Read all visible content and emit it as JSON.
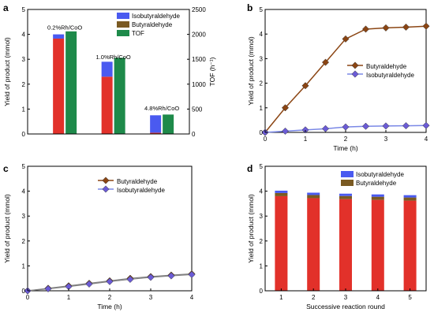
{
  "colors": {
    "isobutyraldehyde": "#4a5af0",
    "butyraldehyde": "#7a5a22",
    "tof": "#1e8a4a",
    "bar_red": "#e2312a",
    "line_butyraldehyde": "#8b4513",
    "marker_isobutyraldehyde": "#6b5bd6",
    "line_isobutyraldehyde": "#7a88e6"
  },
  "chart_data": [
    {
      "panel": "a",
      "type": "bar",
      "categories": [
        "0.2%Rh/CoO",
        "1.0%Rh/CoO",
        "4.8%Rh/CoO"
      ],
      "series": [
        {
          "name": "Isobutyraldehyde",
          "values": [
            0.17,
            0.6,
            0.7
          ],
          "axis": "left",
          "stack": "yield"
        },
        {
          "name": "Butyraldehyde",
          "values": [
            3.83,
            2.3,
            0.05
          ],
          "axis": "left",
          "stack": "yield"
        },
        {
          "name": "TOF",
          "values": [
            2060,
            1530,
            390
          ],
          "axis": "right"
        }
      ],
      "ylabel": "Yield of product (mmol)",
      "ylabel_right": "TOF (h⁻¹)",
      "ylim": [
        0,
        5
      ],
      "ylim_right": [
        0,
        2500
      ],
      "yticks": [
        "0",
        "1",
        "2",
        "3",
        "4",
        "5"
      ],
      "yticks_right": [
        "0",
        "500",
        "1000",
        "1500",
        "2000",
        "2500"
      ],
      "annotations": [
        "0.2%Rh/CoO",
        "1.0%Rh/CoO",
        "4.8%Rh/CoO"
      ],
      "legend": [
        "Isobutyraldehyde",
        "Butyraldehyde",
        "TOF"
      ],
      "legend_position": "top-right"
    },
    {
      "panel": "b",
      "type": "line",
      "x": [
        0,
        0.5,
        1,
        1.5,
        2,
        2.5,
        3,
        3.5,
        4
      ],
      "series": [
        {
          "name": "Butyraldehyde",
          "values": [
            0,
            1.0,
            1.9,
            2.85,
            3.8,
            4.2,
            4.25,
            4.28,
            4.32
          ]
        },
        {
          "name": "Isobutyraldehyde",
          "values": [
            0,
            0.05,
            0.1,
            0.15,
            0.22,
            0.25,
            0.26,
            0.27,
            0.28
          ]
        }
      ],
      "xlabel": "Time (h)",
      "ylabel": "Yield of product (mmol)",
      "xlim": [
        0,
        4
      ],
      "ylim": [
        0,
        5
      ],
      "xticks": [
        "0",
        "1",
        "2",
        "3",
        "4"
      ],
      "yticks": [
        "0",
        "1",
        "2",
        "3",
        "4",
        "5"
      ],
      "legend": [
        "Butyraldehyde",
        "Isobutyraldehyde"
      ],
      "legend_position": "center-right"
    },
    {
      "panel": "c",
      "type": "line",
      "x": [
        0,
        0.5,
        1,
        1.5,
        2,
        2.5,
        3,
        3.5,
        4
      ],
      "series": [
        {
          "name": "Butyraldehyde",
          "values": [
            0,
            0.1,
            0.2,
            0.3,
            0.4,
            0.5,
            0.57,
            0.63,
            0.68
          ]
        },
        {
          "name": "Isobutyraldehyde",
          "values": [
            0,
            0.08,
            0.17,
            0.27,
            0.37,
            0.46,
            0.54,
            0.6,
            0.65
          ]
        }
      ],
      "xlabel": "Time (h)",
      "ylabel": "Yield of product (mmol)",
      "xlim": [
        0,
        4
      ],
      "ylim": [
        0,
        5
      ],
      "xticks": [
        "0",
        "1",
        "2",
        "3",
        "4"
      ],
      "yticks": [
        "0",
        "1",
        "2",
        "3",
        "4",
        "5"
      ],
      "legend": [
        "Butyraldehyde",
        "Isobutyraldehyde"
      ],
      "legend_position": "top-center"
    },
    {
      "panel": "d",
      "type": "bar",
      "categories": [
        "1",
        "2",
        "3",
        "4",
        "5"
      ],
      "series": [
        {
          "name": "Butyraldehyde",
          "values": [
            3.8,
            3.72,
            3.68,
            3.65,
            3.62
          ],
          "stack": "yield"
        },
        {
          "name": "Isobutyraldehyde",
          "values": [
            0.22,
            0.22,
            0.22,
            0.22,
            0.22
          ],
          "stack": "yield"
        }
      ],
      "xlabel": "Successive reaction round",
      "ylabel": "Yield of product (mmol)",
      "ylim": [
        0,
        5
      ],
      "yticks": [
        "0",
        "1",
        "2",
        "3",
        "4",
        "5"
      ],
      "legend": [
        "Isobutyraldehyde",
        "Butyraldehyde"
      ],
      "legend_position": "top-right"
    }
  ]
}
